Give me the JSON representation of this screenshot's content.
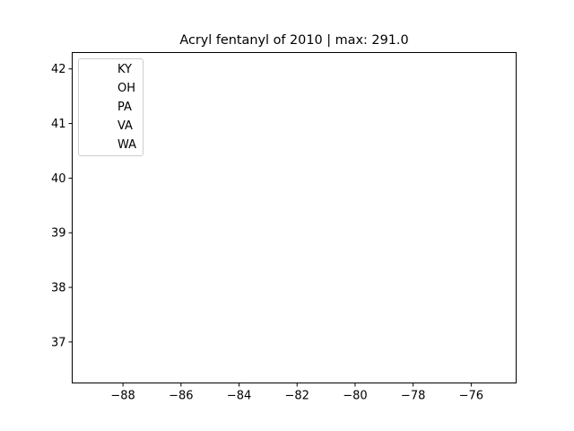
{
  "chart_data": {
    "type": "scatter",
    "title": "Acryl fentanyl of 2010 | max: 291.0",
    "xlabel": "",
    "ylabel": "",
    "xlim": [
      -89.75,
      -74.45
    ],
    "ylim": [
      36.25,
      42.3
    ],
    "xticks": [
      -88,
      -86,
      -84,
      -82,
      -80,
      -78,
      -76
    ],
    "xtick_labels": [
      "−88",
      "−86",
      "−84",
      "−82",
      "−80",
      "−78",
      "−76"
    ],
    "yticks": [
      37,
      38,
      39,
      40,
      41,
      42
    ],
    "ytick_labels": [
      "37",
      "38",
      "39",
      "40",
      "41",
      "42"
    ],
    "grid": false,
    "legend_position": "top-left",
    "series": [
      {
        "name": "KY",
        "x": [],
        "y": []
      },
      {
        "name": "OH",
        "x": [],
        "y": []
      },
      {
        "name": "PA",
        "x": [],
        "y": []
      },
      {
        "name": "VA",
        "x": [],
        "y": []
      },
      {
        "name": "WA",
        "x": [],
        "y": []
      }
    ]
  }
}
